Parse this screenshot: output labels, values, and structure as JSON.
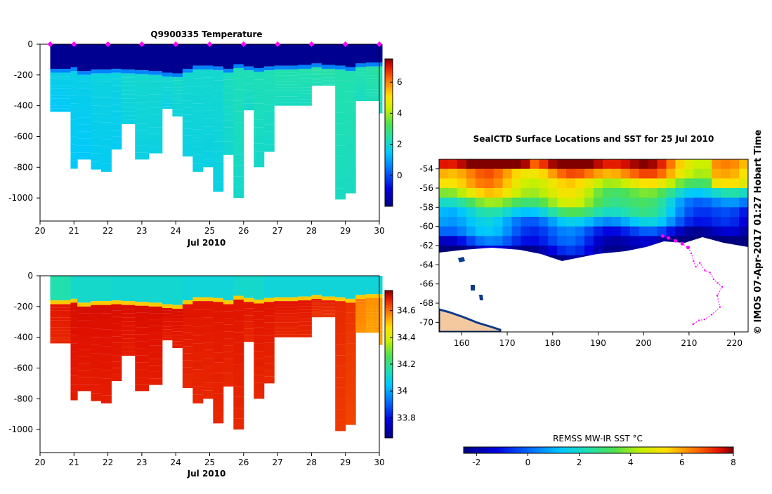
{
  "chart_data": [
    {
      "type": "heatmap",
      "title": "Q9900335  Temperature",
      "xlabel": "Jul 2010",
      "ylabel": "",
      "xlim": [
        20,
        30
      ],
      "ylim": [
        -1150,
        0
      ],
      "xticks": [
        "20",
        "21",
        "22",
        "23",
        "24",
        "25",
        "26",
        "27",
        "28",
        "29",
        "30"
      ],
      "yticks": [
        "0",
        "-200",
        "-400",
        "-600",
        "-800",
        "-1000"
      ],
      "ytick_values": [
        0,
        -200,
        -400,
        -600,
        -800,
        -1000
      ],
      "colorbar": {
        "min": -2,
        "max": 7.5,
        "ticks": [
          "0",
          "2",
          "4",
          "6"
        ],
        "tick_values": [
          0,
          2,
          4,
          6
        ]
      },
      "profile_markers_day": [
        20.3,
        21.0,
        22.0,
        23.0,
        24.0,
        25.0,
        26.0,
        27.0,
        28.0,
        29.0,
        30.0
      ],
      "profiles": {
        "day": [
          20.3,
          20.5,
          20.9,
          21.1,
          21.5,
          21.8,
          22.1,
          22.4,
          22.8,
          23.2,
          23.6,
          23.9,
          24.2,
          24.5,
          24.8,
          25.1,
          25.4,
          25.7,
          26.0,
          26.3,
          26.6,
          26.9,
          27.2,
          27.6,
          28.0,
          28.3,
          28.7,
          29.0,
          29.3,
          29.6,
          30.0
        ],
        "max_depth": [
          440,
          440,
          810,
          750,
          815,
          830,
          685,
          520,
          750,
          710,
          420,
          470,
          730,
          830,
          800,
          960,
          720,
          1000,
          430,
          800,
          700,
          400,
          400,
          400,
          270,
          270,
          1010,
          970,
          370,
          370,
          450
        ],
        "mixed_layer_depth": [
          160,
          160,
          150,
          175,
          165,
          165,
          160,
          165,
          170,
          175,
          185,
          190,
          160,
          140,
          140,
          145,
          160,
          130,
          145,
          155,
          145,
          140,
          140,
          135,
          125,
          135,
          140,
          150,
          125,
          120,
          120
        ],
        "surface_temp": [
          -1.8,
          -1.8,
          -1.8,
          -1.8,
          -1.8,
          -1.8,
          -1.8,
          -1.8,
          -1.8,
          -1.8,
          -1.8,
          -1.8,
          -1.8,
          -1.8,
          -1.8,
          -1.8,
          -1.8,
          -1.8,
          -1.8,
          -1.8,
          -1.8,
          -1.8,
          -1.8,
          -1.8,
          -1.8,
          -1.8,
          -1.8,
          -1.8,
          -1.8,
          -1.8,
          -1.8
        ],
        "deep_temp": [
          1.7,
          1.7,
          1.7,
          1.7,
          1.8,
          1.8,
          1.8,
          2.0,
          2.0,
          2.0,
          2.0,
          2.1,
          2.0,
          2.0,
          2.0,
          2.0,
          2.2,
          2.3,
          2.3,
          2.3,
          2.3,
          2.4,
          2.4,
          2.4,
          2.5,
          2.5,
          2.4,
          2.4,
          2.4,
          2.5,
          2.5
        ],
        "sea_floor_shading": false
      }
    },
    {
      "type": "heatmap",
      "title": "",
      "xlabel": "Jul 2010",
      "ylabel": "",
      "xlim": [
        20,
        30
      ],
      "ylim": [
        -1150,
        0
      ],
      "xticks": [
        "20",
        "21",
        "22",
        "23",
        "24",
        "25",
        "26",
        "27",
        "28",
        "29",
        "30"
      ],
      "yticks": [
        "0",
        "-200",
        "-400",
        "-600",
        "-800",
        "-1000"
      ],
      "ytick_values": [
        0,
        -200,
        -400,
        -600,
        -800,
        -1000
      ],
      "colorbar": {
        "min": 33.65,
        "max": 34.75,
        "ticks": [
          "33.8",
          "34",
          "34.2",
          "34.4",
          "34.6"
        ],
        "tick_values": [
          33.8,
          34.0,
          34.2,
          34.4,
          34.6
        ]
      },
      "profiles": {
        "surface_salinity": [
          34.16,
          34.16,
          34.12,
          34.12,
          34.12,
          34.12,
          34.11,
          34.11,
          34.11,
          34.11,
          34.11,
          34.11,
          34.1,
          34.1,
          34.1,
          34.1,
          34.1,
          34.12,
          34.12,
          34.12,
          34.1,
          34.1,
          34.1,
          34.1,
          34.1,
          34.1,
          34.1,
          34.1,
          34.1,
          34.1,
          34.1
        ],
        "deep_salinity": [
          34.69,
          34.69,
          34.7,
          34.7,
          34.7,
          34.7,
          34.7,
          34.7,
          34.7,
          34.7,
          34.7,
          34.7,
          34.69,
          34.69,
          34.69,
          34.69,
          34.69,
          34.69,
          34.69,
          34.69,
          34.69,
          34.69,
          34.69,
          34.69,
          34.68,
          34.68,
          34.67,
          34.66,
          34.58,
          34.56,
          34.56
        ]
      }
    },
    {
      "type": "heatmap",
      "title": "SealCTD Surface Locations and SST for 25 Jul 2010",
      "xlim": [
        155,
        223
      ],
      "ylim": [
        -71,
        -53
      ],
      "xticks": [
        "160",
        "170",
        "180",
        "190",
        "200",
        "210",
        "220"
      ],
      "xtick_values": [
        160,
        170,
        180,
        190,
        200,
        210,
        220
      ],
      "yticks": [
        "-54",
        "-56",
        "-58",
        "-60",
        "-62",
        "-64",
        "-66",
        "-68",
        "-70"
      ],
      "ytick_values": [
        -54,
        -56,
        -58,
        -60,
        -62,
        -64,
        -66,
        -68,
        -70
      ],
      "colorbar": {
        "label": "REMSS MW-IR SST °C",
        "min": -2.5,
        "max": 8,
        "ticks": [
          "-2",
          "0",
          "2",
          "4",
          "6",
          "8"
        ],
        "tick_values": [
          -2,
          0,
          2,
          4,
          6,
          8
        ]
      },
      "track": {
        "lon": [
          204.2,
          205.5,
          207.0,
          208.5,
          209.8,
          210.5,
          211.0,
          211.5,
          212.4,
          213.5,
          214.6,
          215.4,
          216.3,
          217.3,
          216.2,
          216.8,
          215.0,
          213.4,
          212.2,
          210.9
        ],
        "lat": [
          -61.0,
          -61.2,
          -61.5,
          -61.8,
          -62.2,
          -62.8,
          -63.6,
          -64.2,
          -63.8,
          -64.6,
          -64.8,
          -65.5,
          -65.9,
          -66.3,
          -67.2,
          -68.4,
          -69.2,
          -69.7,
          -69.8,
          -70.2
        ]
      }
    }
  ],
  "side_text": "© IMOS 07-Apr-2017 01:27 Hobart Time",
  "colors": {
    "depth_fill": "#ffffff",
    "antarctica": "#ffffff",
    "land_fill": "#f5c9a0",
    "track": "#ff00ff"
  }
}
